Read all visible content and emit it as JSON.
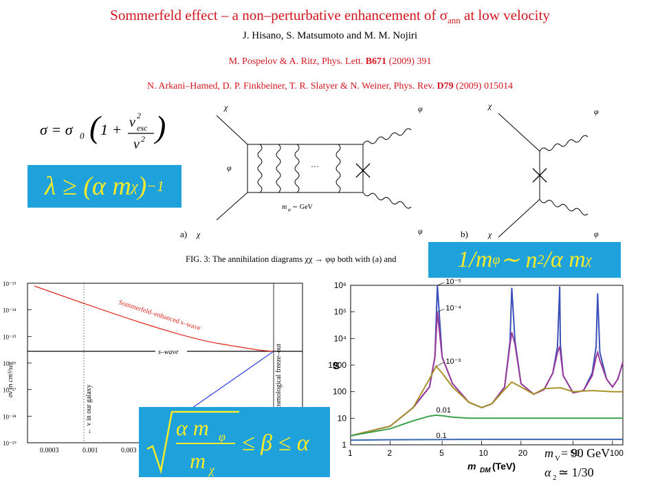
{
  "title": "Sommerfeld effect – a non–perturbative enhancement of σ",
  "title_sub": "ann",
  "title_tail": " at low velocity",
  "authors": "J. Hisano, S. Matsumoto and M. M. Nojiri",
  "refs": [
    {
      "authors": "M. Pospelov & A. Ritz, Phys. Lett. ",
      "vol": "B671",
      "tail": " (2009) 391"
    },
    {
      "authors": "N. Arkani–Hamed, D. P. Finkbeiner, T. R. Slatyer & N. Weiner, Phys. Rev. ",
      "vol": "D79",
      "tail": " (2009) 015014"
    }
  ],
  "formula": {
    "lhs": "σ = σ",
    "sub0": "0",
    "num": "v",
    "num_sup": "2",
    "num_sub": "esc",
    "den": "v",
    "den_sup": "2",
    "one": "1 +"
  },
  "box_lambda": {
    "text": "λ ≥ (α m",
    "sub": "χ",
    "close": ")",
    "sup": "−1"
  },
  "box_mphi": {
    "pre": "1/m",
    "sub": "φ",
    "mid": " ∼ n",
    "sup": "2",
    "post": "/α m",
    "sub2": "χ"
  },
  "box_beta": {
    "num": "α m",
    "num_sub": "φ",
    "den": "m",
    "den_sub": "χ",
    "rhs": " ≤ β ≤ α"
  },
  "diagram": {
    "a_label": "a)",
    "b_label": "b)",
    "chi": "χ",
    "phi": "φ",
    "dots": "···",
    "mass_label": "m",
    "mass_sub": "φ",
    "mass_tail": " ∼ GeV",
    "caption": "FIG. 3: The annihilation diagrams χχ → φφ both with (a) and"
  },
  "left_plot": {
    "ylabel": "σv in cm³/sec",
    "yticks": [
      "10⁻²³",
      "10⁻²⁴",
      "10⁻²⁵",
      "10⁻²⁶",
      "10⁻²⁷",
      "10⁻²⁸",
      "10⁻²⁹"
    ],
    "xticks": [
      "0.0003",
      "0.001",
      "0.003"
    ],
    "swave": "s–wave",
    "enhanced": "Sommerfeld–enhanced s–wave",
    "galaxy": "← v in our galaxy",
    "freeze": "cosmological freeze–out"
  },
  "chart_data": {
    "type": "line",
    "title": "",
    "xlabel": "m",
    "xlabel_sub": "DM",
    "xlabel_unit": " (TeV)",
    "ylabel": "S",
    "xscale": "log",
    "yscale": "log",
    "xlim": [
      1,
      120
    ],
    "ylim": [
      1,
      1000000
    ],
    "xticks": [
      "1",
      "2",
      "5",
      "10",
      "20",
      "50",
      "100"
    ],
    "yticks": [
      "1",
      "10",
      "100",
      "1000",
      "10⁴",
      "10⁵",
      "10⁶"
    ],
    "series": [
      {
        "name": "10⁻⁵",
        "color": "#3a4fb8",
        "x": [
          1,
          2,
          3,
          4,
          4.4,
          4.6,
          5,
          6,
          8,
          10,
          12,
          15,
          16.5,
          17,
          18,
          20,
          25,
          30,
          35,
          38,
          39.5,
          40,
          42,
          50,
          60,
          70,
          75,
          77,
          80,
          90,
          100,
          110,
          120
        ],
        "values": [
          2.2,
          5,
          25,
          150,
          2000,
          1000000,
          2000,
          200,
          40,
          25,
          35,
          150,
          8000,
          800000,
          8000,
          200,
          80,
          120,
          500,
          5000,
          900000,
          6000,
          400,
          90,
          110,
          500,
          5000,
          500000,
          3000,
          300,
          150,
          300,
          1300
        ]
      },
      {
        "name": "10⁻⁴",
        "color": "#9a3a9a",
        "x": [
          1,
          2,
          3,
          4,
          4.4,
          4.6,
          5,
          6,
          8,
          10,
          12,
          15,
          16.5,
          17,
          18,
          20,
          25,
          30,
          35,
          38,
          39.5,
          40,
          42,
          50,
          60,
          70,
          75,
          77,
          80,
          90,
          100,
          110,
          120
        ],
        "values": [
          2.2,
          5,
          25,
          150,
          2000,
          100000,
          2000,
          200,
          40,
          25,
          35,
          150,
          6000,
          17000,
          6000,
          200,
          80,
          120,
          500,
          3000,
          5000,
          3000,
          400,
          90,
          110,
          400,
          2000,
          3000,
          1500,
          300,
          150,
          300,
          1300
        ]
      },
      {
        "name": "10⁻³",
        "color": "#a8912a",
        "x": [
          1,
          2,
          3,
          4,
          4.5,
          5,
          6,
          8,
          10,
          12,
          15,
          17,
          20,
          25,
          30,
          40,
          50,
          70,
          100,
          120
        ],
        "values": [
          2.2,
          5,
          25,
          300,
          900,
          500,
          150,
          40,
          25,
          35,
          120,
          230,
          150,
          80,
          130,
          140,
          100,
          110,
          100,
          100
        ]
      },
      {
        "name": "0.01",
        "color": "#3aa04a",
        "x": [
          1,
          2,
          3,
          4,
          4.5,
          5,
          6,
          8,
          10,
          20,
          50,
          100,
          120
        ],
        "values": [
          2.2,
          4,
          8,
          12,
          13,
          12.5,
          11,
          10,
          10,
          10,
          10,
          10,
          10
        ]
      },
      {
        "name": "0.1",
        "color": "#3568b0",
        "x": [
          1,
          2,
          5,
          10,
          20,
          50,
          100,
          120
        ],
        "values": [
          1.5,
          1.55,
          1.58,
          1.6,
          1.6,
          1.6,
          1.6,
          1.6
        ]
      }
    ],
    "legend_mv": {
      "label": "m",
      "sub": "V",
      "value": " = 90 GeV"
    },
    "legend_alpha": {
      "label": "α",
      "sub": "2",
      "value": " ≃ 1/30"
    }
  }
}
